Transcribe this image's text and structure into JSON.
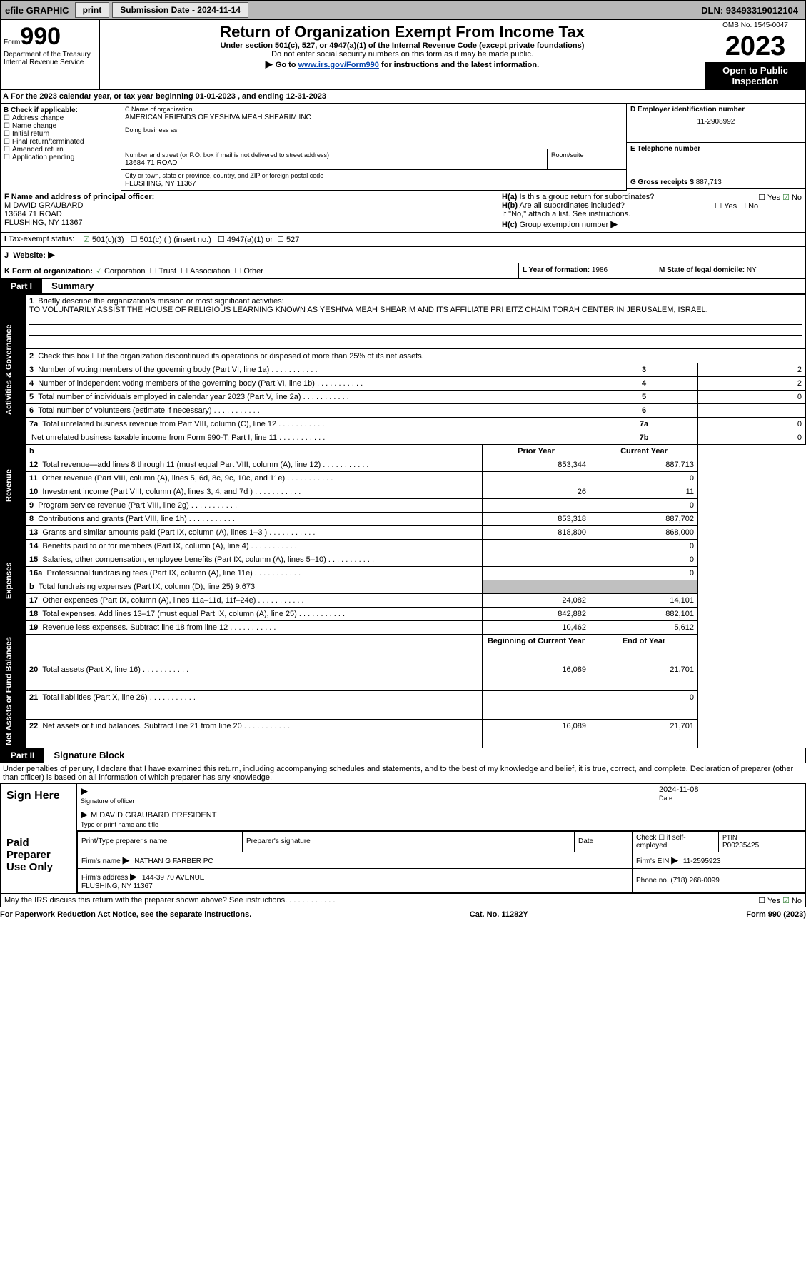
{
  "topbar": {
    "efile": "efile GRAPHIC",
    "print": "print",
    "submission_label": "Submission Date - 2024-11-14",
    "dln_label": "DLN: 93493319012104"
  },
  "header": {
    "form_word": "Form",
    "form_num": "990",
    "dept": "Department of the Treasury Internal Revenue Service",
    "title": "Return of Organization Exempt From Income Tax",
    "sub1": "Under section 501(c), 527, or 4947(a)(1) of the Internal Revenue Code (except private foundations)",
    "sub2": "Do not enter social security numbers on this form as it may be made public.",
    "sub3": "Go to",
    "sub3_link": "www.irs.gov/Form990",
    "sub3_tail": "for instructions and the latest information.",
    "omb": "OMB No. 1545-0047",
    "year": "2023",
    "public": "Open to Public Inspection"
  },
  "line_a": "For the 2023 calendar year, or tax year beginning 01-01-2023   , and ending 12-31-2023",
  "section_b": {
    "label": "B Check if applicable:",
    "opts": [
      "Address change",
      "Name change",
      "Initial return",
      "Final return/terminated",
      "Amended return",
      "Application pending"
    ]
  },
  "section_c": {
    "name_label": "C Name of organization",
    "name": "AMERICAN FRIENDS OF YESHIVA MEAH SHEARIM INC",
    "dba_label": "Doing business as",
    "dba": "",
    "street_label": "Number and street (or P.O. box if mail is not delivered to street address)",
    "street": "13684 71 ROAD",
    "room_label": "Room/suite",
    "city_label": "City or town, state or province, country, and ZIP or foreign postal code",
    "city": "FLUSHING, NY  11367"
  },
  "section_d": {
    "label": "D Employer identification number",
    "value": "11-2908992"
  },
  "section_e": {
    "label": "E Telephone number",
    "value": ""
  },
  "section_g": {
    "label": "G Gross receipts $",
    "value": "887,713"
  },
  "section_f": {
    "label": "F  Name and address of principal officer:",
    "name": "M DAVID GRAUBARD",
    "street": "13684 71 ROAD",
    "city": "FLUSHING, NY  11367"
  },
  "section_h": {
    "a": "Is this a group return for subordinates?",
    "b": "Are all subordinates included?",
    "note": "If \"No,\" attach a list. See instructions.",
    "c": "Group exemption number"
  },
  "section_i": {
    "label": "Tax-exempt status:",
    "opts": [
      "501(c)(3)",
      "501(c) (  ) (insert no.)",
      "4947(a)(1) or",
      "527"
    ]
  },
  "section_j": {
    "label": "Website:",
    "value": ""
  },
  "section_k": {
    "label": "K Form of organization:",
    "opts": [
      "Corporation",
      "Trust",
      "Association",
      "Other"
    ]
  },
  "section_l": {
    "label": "L Year of formation:",
    "value": "1986"
  },
  "section_m": {
    "label": "M State of legal domicile:",
    "value": "NY"
  },
  "parts": {
    "p1": {
      "num": "Part I",
      "title": "Summary"
    },
    "p2": {
      "num": "Part II",
      "title": "Signature Block"
    }
  },
  "sidebar": {
    "s1": "Activities & Governance",
    "s2": "Revenue",
    "s3": "Expenses",
    "s4": "Net Assets or Fund Balances"
  },
  "summary": {
    "l1_label": "Briefly describe the organization's mission or most significant activities:",
    "l1_text": "TO VOLUNTARILY ASSIST THE HOUSE OF RELIGIOUS LEARNING KNOWN AS YESHIVA MEAH SHEARIM AND ITS AFFILIATE PRI EITZ CHAIM TORAH CENTER IN JERUSALEM, ISRAEL.",
    "l2": "Check this box ☐ if the organization discontinued its operations or disposed of more than 25% of its net assets.",
    "rows_top": [
      {
        "n": "3",
        "t": "Number of voting members of the governing body (Part VI, line 1a)",
        "box": "3",
        "v": "2"
      },
      {
        "n": "4",
        "t": "Number of independent voting members of the governing body (Part VI, line 1b)",
        "box": "4",
        "v": "2"
      },
      {
        "n": "5",
        "t": "Total number of individuals employed in calendar year 2023 (Part V, line 2a)",
        "box": "5",
        "v": "0"
      },
      {
        "n": "6",
        "t": "Total number of volunteers (estimate if necessary)",
        "box": "6",
        "v": ""
      },
      {
        "n": "7a",
        "t": "Total unrelated business revenue from Part VIII, column (C), line 12",
        "box": "7a",
        "v": "0"
      },
      {
        "n": "",
        "t": "Net unrelated business taxable income from Form 990-T, Part I, line 11",
        "box": "7b",
        "v": "0"
      }
    ],
    "col_headers": {
      "prior": "Prior Year",
      "current": "Current Year"
    },
    "revenue": [
      {
        "n": "8",
        "t": "Contributions and grants (Part VIII, line 1h)",
        "p": "853,318",
        "c": "887,702"
      },
      {
        "n": "9",
        "t": "Program service revenue (Part VIII, line 2g)",
        "p": "",
        "c": "0"
      },
      {
        "n": "10",
        "t": "Investment income (Part VIII, column (A), lines 3, 4, and 7d )",
        "p": "26",
        "c": "11"
      },
      {
        "n": "11",
        "t": "Other revenue (Part VIII, column (A), lines 5, 6d, 8c, 9c, 10c, and 11e)",
        "p": "",
        "c": "0"
      },
      {
        "n": "12",
        "t": "Total revenue—add lines 8 through 11 (must equal Part VIII, column (A), line 12)",
        "p": "853,344",
        "c": "887,713"
      }
    ],
    "expenses": [
      {
        "n": "13",
        "t": "Grants and similar amounts paid (Part IX, column (A), lines 1–3 )",
        "p": "818,800",
        "c": "868,000"
      },
      {
        "n": "14",
        "t": "Benefits paid to or for members (Part IX, column (A), line 4)",
        "p": "",
        "c": "0"
      },
      {
        "n": "15",
        "t": "Salaries, other compensation, employee benefits (Part IX, column (A), lines 5–10)",
        "p": "",
        "c": "0"
      },
      {
        "n": "16a",
        "t": "Professional fundraising fees (Part IX, column (A), line 11e)",
        "p": "",
        "c": "0"
      },
      {
        "n": "b",
        "t": "Total fundraising expenses (Part IX, column (D), line 25) 9,673",
        "p": "shade",
        "c": "shade"
      },
      {
        "n": "17",
        "t": "Other expenses (Part IX, column (A), lines 11a–11d, 11f–24e)",
        "p": "24,082",
        "c": "14,101"
      },
      {
        "n": "18",
        "t": "Total expenses. Add lines 13–17 (must equal Part IX, column (A), line 25)",
        "p": "842,882",
        "c": "882,101"
      },
      {
        "n": "19",
        "t": "Revenue less expenses. Subtract line 18 from line 12",
        "p": "10,462",
        "c": "5,612"
      }
    ],
    "net_headers": {
      "begin": "Beginning of Current Year",
      "end": "End of Year"
    },
    "net": [
      {
        "n": "20",
        "t": "Total assets (Part X, line 16)",
        "p": "16,089",
        "c": "21,701"
      },
      {
        "n": "21",
        "t": "Total liabilities (Part X, line 26)",
        "p": "",
        "c": "0"
      },
      {
        "n": "22",
        "t": "Net assets or fund balances. Subtract line 21 from line 20",
        "p": "16,089",
        "c": "21,701"
      }
    ]
  },
  "sig": {
    "penalties": "Under penalties of perjury, I declare that I have examined this return, including accompanying schedules and statements, and to the best of my knowledge and belief, it is true, correct, and complete. Declaration of preparer (other than officer) is based on all information of which preparer has any knowledge.",
    "sign_here": "Sign Here",
    "sig_label": "Signature of officer",
    "date_label": "Date",
    "date_val": "2024-11-08",
    "officer": "M DAVID GRAUBARD  PRESIDENT",
    "type_label": "Type or print name and title",
    "paid": "Paid Preparer Use Only",
    "prep_name_label": "Print/Type preparer's name",
    "prep_sig_label": "Preparer's signature",
    "prep_date_label": "Date",
    "self_emp": "Check ☐ if self-employed",
    "ptin_label": "PTIN",
    "ptin": "P00235425",
    "firm_name_label": "Firm's name",
    "firm_name": "NATHAN G FARBER PC",
    "firm_ein_label": "Firm's EIN",
    "firm_ein": "11-2595923",
    "firm_addr_label": "Firm's address",
    "firm_addr1": "144-39 70 AVENUE",
    "firm_addr2": "FLUSHING, NY  11367",
    "phone_label": "Phone no.",
    "phone": "(718) 268-0099",
    "discuss": "May the IRS discuss this return with the preparer shown above? See instructions."
  },
  "footer": {
    "left": "For Paperwork Reduction Act Notice, see the separate instructions.",
    "mid": "Cat. No. 11282Y",
    "right": "Form 990 (2023)"
  }
}
